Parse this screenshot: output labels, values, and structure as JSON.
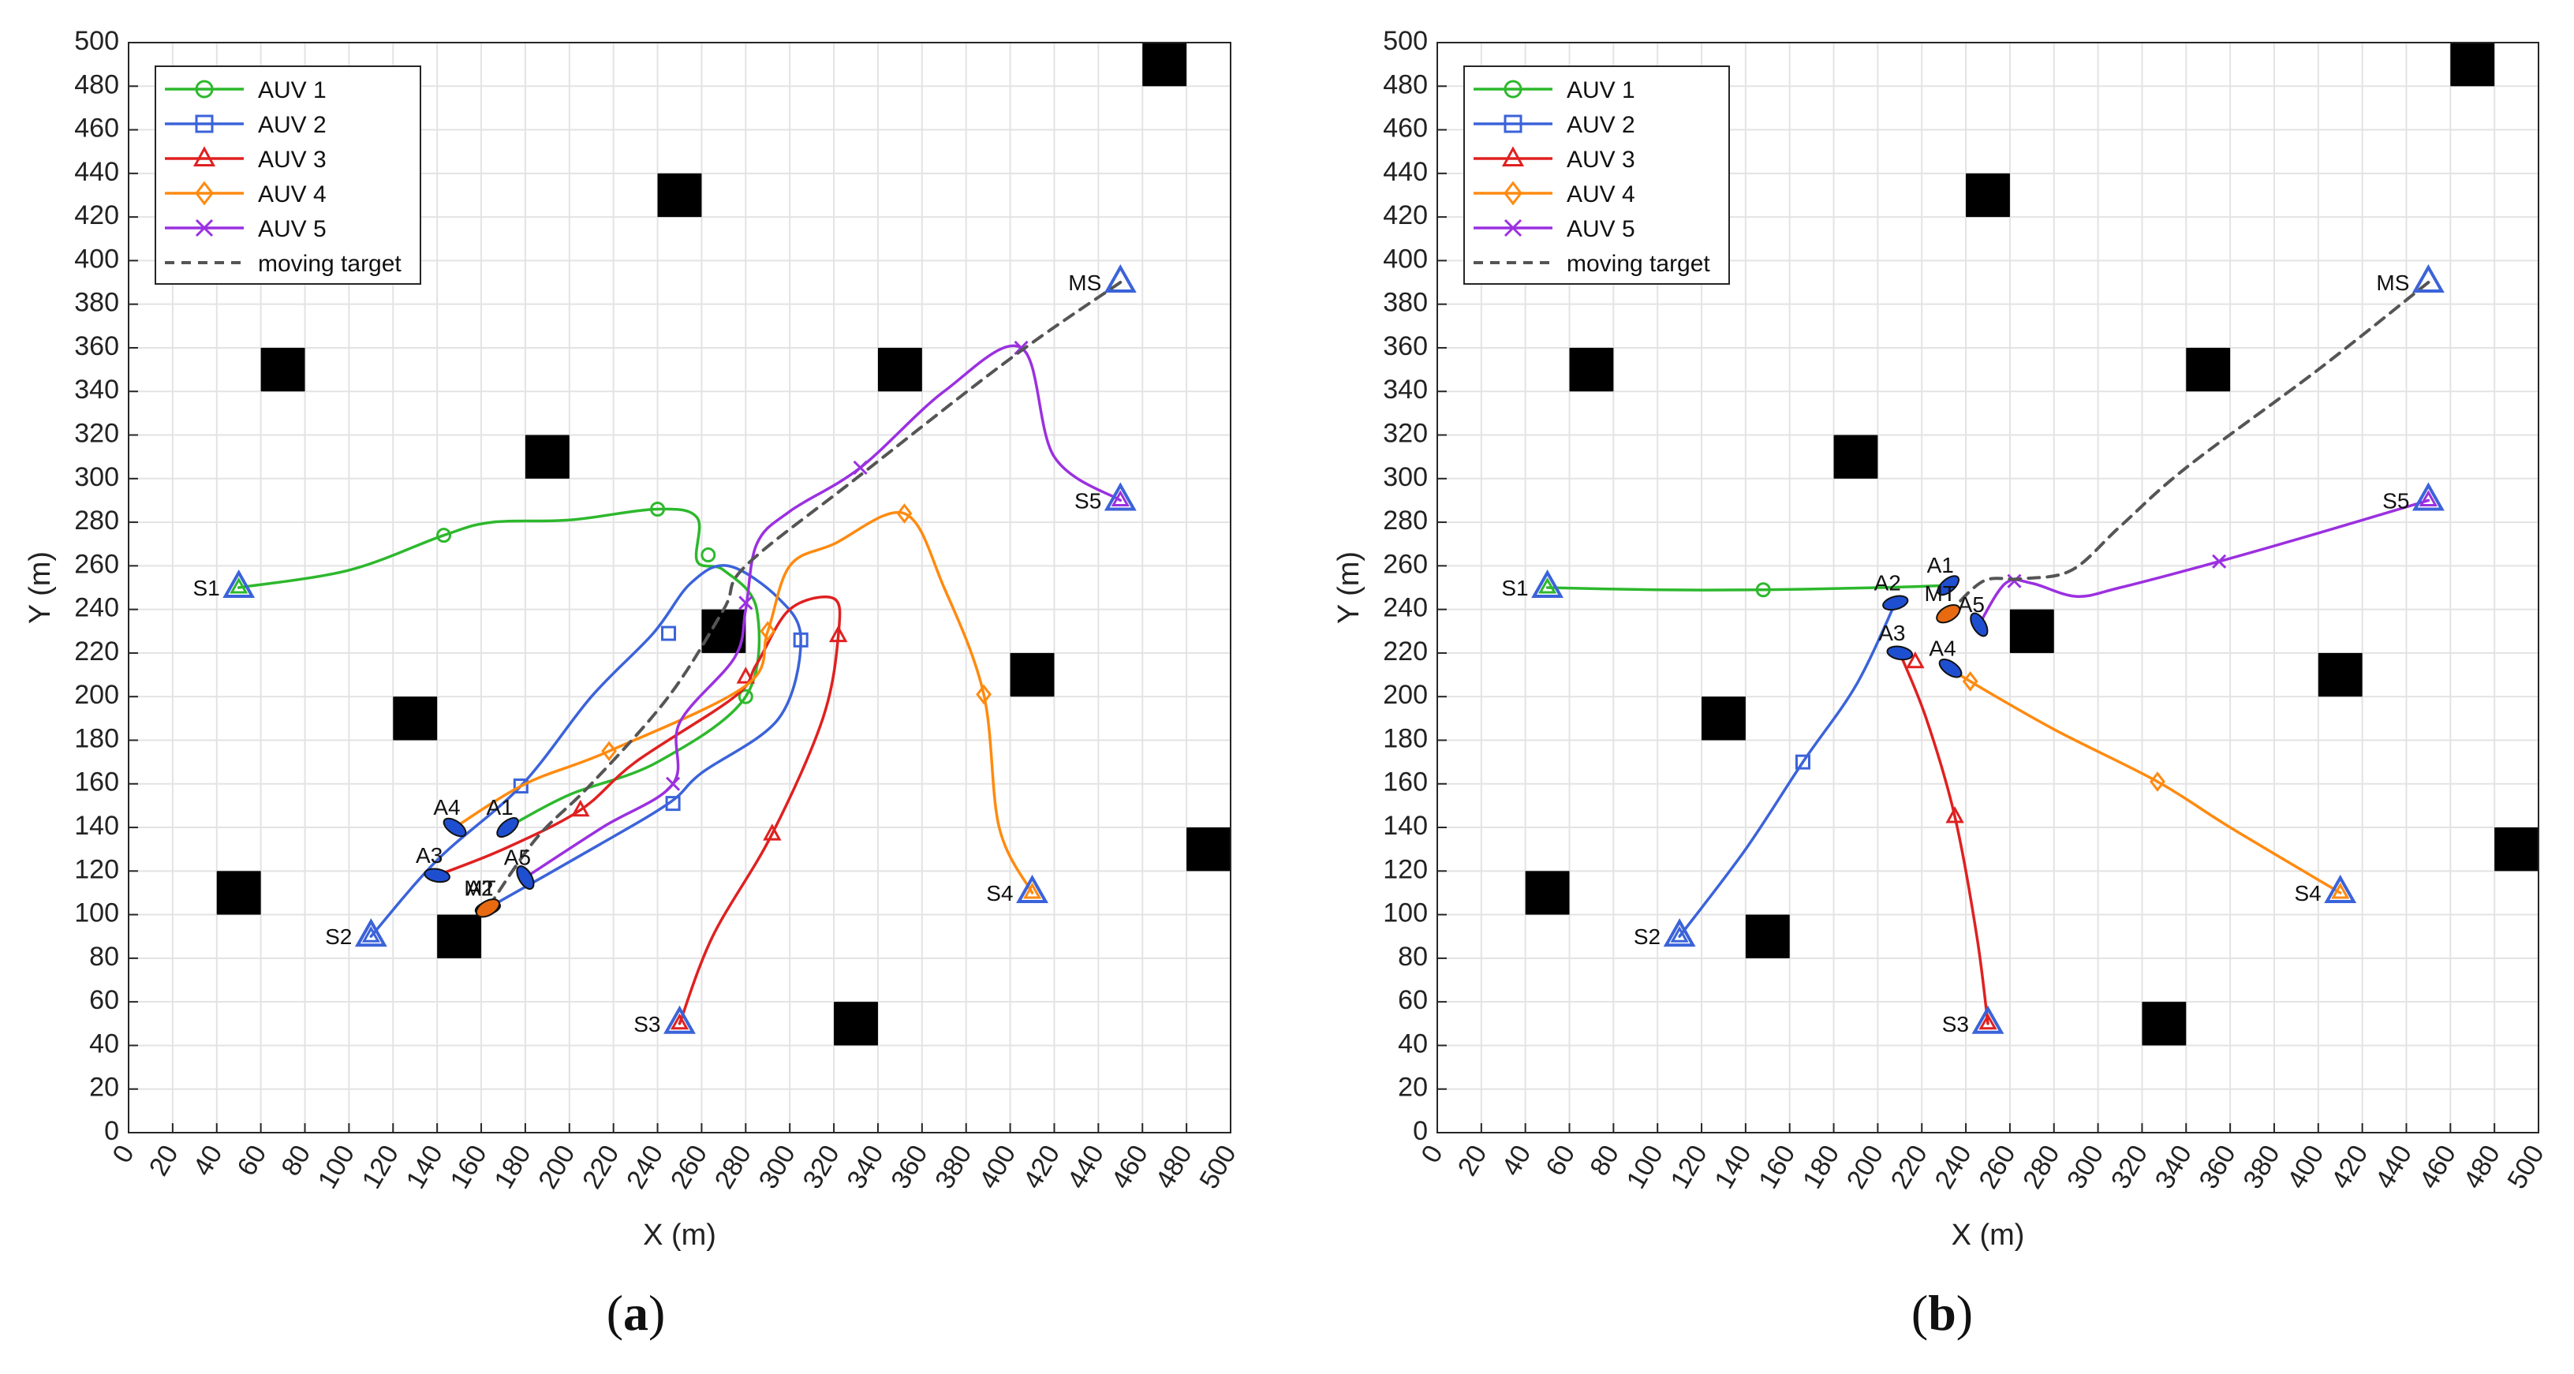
{
  "figure": {
    "panel_labels": [
      {
        "open": "(",
        "letter": "a",
        "close": ")"
      },
      {
        "open": "(",
        "letter": "b",
        "close": ")"
      }
    ]
  },
  "colors": {
    "AUV 1": "#2db82d",
    "AUV 2": "#3b63d9",
    "AUV 3": "#e02020",
    "AUV 4": "#ff8a10",
    "AUV 5": "#9b30e0",
    "moving target": "#555555",
    "obstacle": "#000000"
  },
  "chart_data": [
    {
      "type": "line",
      "panel": "a",
      "xlabel": "X (m)",
      "ylabel": "Y (m)",
      "xlim": [
        0,
        500
      ],
      "ylim": [
        0,
        500
      ],
      "xticks": [
        0,
        20,
        40,
        60,
        80,
        100,
        120,
        140,
        160,
        180,
        200,
        220,
        240,
        260,
        280,
        300,
        320,
        340,
        360,
        380,
        400,
        420,
        440,
        460,
        480,
        500
      ],
      "yticks": [
        0,
        20,
        40,
        60,
        80,
        100,
        120,
        140,
        160,
        180,
        200,
        220,
        240,
        260,
        280,
        300,
        320,
        340,
        360,
        380,
        400,
        420,
        440,
        460,
        480,
        500
      ],
      "grid": true,
      "legend": {
        "location": "top-left",
        "entries": [
          "AUV 1",
          "AUV 2",
          "AUV 3",
          "AUV 4",
          "AUV 5",
          "moving target"
        ]
      },
      "obstacles": [
        [
          470,
          490
        ],
        [
          250,
          430
        ],
        [
          70,
          350
        ],
        [
          350,
          350
        ],
        [
          190,
          310
        ],
        [
          270,
          230
        ],
        [
          410,
          210
        ],
        [
          130,
          190
        ],
        [
          490,
          130
        ],
        [
          50,
          110
        ],
        [
          150,
          90
        ],
        [
          330,
          50
        ]
      ],
      "start_labels": [
        {
          "text": "S1",
          "x": 50,
          "y": 250,
          "series": "AUV 1"
        },
        {
          "text": "S2",
          "x": 110,
          "y": 90,
          "series": "AUV 2"
        },
        {
          "text": "S3",
          "x": 250,
          "y": 50,
          "series": "AUV 3"
        },
        {
          "text": "S4",
          "x": 410,
          "y": 110,
          "series": "AUV 4"
        },
        {
          "text": "S5",
          "x": 450,
          "y": 290,
          "series": "AUV 5"
        },
        {
          "text": "MS",
          "x": 450,
          "y": 390,
          "series": "moving target"
        }
      ],
      "end_labels": [
        {
          "text": "A1",
          "x": 172,
          "y": 140
        },
        {
          "text": "A2",
          "x": 163,
          "y": 103
        },
        {
          "text": "A3",
          "x": 140,
          "y": 118
        },
        {
          "text": "A4",
          "x": 148,
          "y": 140
        },
        {
          "text": "A5",
          "x": 180,
          "y": 117
        },
        {
          "text": "MT",
          "x": 163,
          "y": 103
        }
      ],
      "series": [
        {
          "name": "AUV 1",
          "marker": "circle",
          "points": [
            [
              50,
              250
            ],
            [
              100,
              258
            ],
            [
              143,
              274
            ],
            [
              165,
              280
            ],
            [
              200,
              281
            ],
            [
              240,
              286
            ],
            [
              258,
              282
            ],
            [
              258,
              262
            ],
            [
              270,
              258
            ],
            [
              285,
              240
            ],
            [
              280,
              200
            ],
            [
              240,
              170
            ],
            [
              200,
              155
            ],
            [
              172,
              140
            ]
          ],
          "markers": [
            [
              143,
              274
            ],
            [
              240,
              286
            ],
            [
              263,
              265
            ],
            [
              280,
              200
            ]
          ]
        },
        {
          "name": "AUV 2",
          "marker": "square",
          "points": [
            [
              110,
              90
            ],
            [
              140,
              125
            ],
            [
              178,
              159
            ],
            [
              210,
              200
            ],
            [
              238,
              229
            ],
            [
              255,
              252
            ],
            [
              272,
              260
            ],
            [
              295,
              245
            ],
            [
              305,
              226
            ],
            [
              295,
              190
            ],
            [
              260,
              165
            ],
            [
              245,
              151
            ],
            [
              210,
              130
            ],
            [
              163,
              103
            ]
          ],
          "markers": [
            [
              178,
              159
            ],
            [
              245,
              229
            ],
            [
              305,
              226
            ],
            [
              247,
              151
            ]
          ]
        },
        {
          "name": "AUV 3",
          "marker": "triangle",
          "points": [
            [
              250,
              50
            ],
            [
              265,
              90
            ],
            [
              292,
              137
            ],
            [
              315,
              190
            ],
            [
              322,
              228
            ],
            [
              320,
              245
            ],
            [
              300,
              240
            ],
            [
              285,
              215
            ],
            [
              275,
              200
            ],
            [
              230,
              170
            ],
            [
              205,
              148
            ],
            [
              170,
              130
            ],
            [
              140,
              118
            ]
          ],
          "markers": [
            [
              292,
              137
            ],
            [
              322,
              228
            ],
            [
              280,
              209
            ],
            [
              205,
              148
            ]
          ]
        },
        {
          "name": "AUV 4",
          "marker": "diamond",
          "points": [
            [
              410,
              110
            ],
            [
              395,
              140
            ],
            [
              388,
              201
            ],
            [
              370,
              250
            ],
            [
              352,
              284
            ],
            [
              320,
              270
            ],
            [
              300,
              260
            ],
            [
              290,
              230
            ],
            [
              280,
              205
            ],
            [
              218,
              175
            ],
            [
              180,
              160
            ],
            [
              148,
              140
            ]
          ],
          "markers": [
            [
              388,
              201
            ],
            [
              352,
              284
            ],
            [
              290,
              230
            ],
            [
              218,
              175
            ]
          ]
        },
        {
          "name": "AUV 5",
          "marker": "x",
          "points": [
            [
              450,
              290
            ],
            [
              420,
              310
            ],
            [
              405,
              360
            ],
            [
              370,
              340
            ],
            [
              332,
              305
            ],
            [
              300,
              285
            ],
            [
              285,
              270
            ],
            [
              280,
              240
            ],
            [
              275,
              218
            ],
            [
              250,
              188
            ],
            [
              247,
              160
            ],
            [
              215,
              140
            ],
            [
              180,
              117
            ]
          ],
          "markers": [
            [
              405,
              360
            ],
            [
              332,
              305
            ],
            [
              280,
              243
            ],
            [
              247,
              160
            ]
          ]
        },
        {
          "name": "moving target",
          "marker": "none",
          "dashed": true,
          "points": [
            [
              450,
              390
            ],
            [
              400,
              355
            ],
            [
              330,
              300
            ],
            [
              280,
              260
            ],
            [
              270,
              240
            ],
            [
              245,
              200
            ],
            [
              210,
              160
            ],
            [
              185,
              135
            ],
            [
              163,
              103
            ]
          ],
          "markers": []
        }
      ]
    },
    {
      "type": "line",
      "panel": "b",
      "xlabel": "X (m)",
      "ylabel": "Y (m)",
      "xlim": [
        0,
        500
      ],
      "ylim": [
        0,
        500
      ],
      "xticks": [
        0,
        20,
        40,
        60,
        80,
        100,
        120,
        140,
        160,
        180,
        200,
        220,
        240,
        260,
        280,
        300,
        320,
        340,
        360,
        380,
        400,
        420,
        440,
        460,
        480,
        500
      ],
      "yticks": [
        0,
        20,
        40,
        60,
        80,
        100,
        120,
        140,
        160,
        180,
        200,
        220,
        240,
        260,
        280,
        300,
        320,
        340,
        360,
        380,
        400,
        420,
        440,
        460,
        480,
        500
      ],
      "grid": true,
      "legend": {
        "location": "top-left",
        "entries": [
          "AUV 1",
          "AUV 2",
          "AUV 3",
          "AUV 4",
          "AUV 5",
          "moving target"
        ]
      },
      "obstacles": [
        [
          470,
          490
        ],
        [
          250,
          430
        ],
        [
          70,
          350
        ],
        [
          350,
          350
        ],
        [
          190,
          310
        ],
        [
          270,
          230
        ],
        [
          410,
          210
        ],
        [
          130,
          190
        ],
        [
          490,
          130
        ],
        [
          50,
          110
        ],
        [
          150,
          90
        ],
        [
          330,
          50
        ]
      ],
      "start_labels": [
        {
          "text": "S1",
          "x": 50,
          "y": 250,
          "series": "AUV 1"
        },
        {
          "text": "S2",
          "x": 110,
          "y": 90,
          "series": "AUV 2"
        },
        {
          "text": "S3",
          "x": 250,
          "y": 50,
          "series": "AUV 3"
        },
        {
          "text": "S4",
          "x": 410,
          "y": 110,
          "series": "AUV 4"
        },
        {
          "text": "S5",
          "x": 450,
          "y": 290,
          "series": "AUV 5"
        },
        {
          "text": "MS",
          "x": 450,
          "y": 390,
          "series": "moving target"
        }
      ],
      "end_labels": [
        {
          "text": "A1",
          "x": 232,
          "y": 251
        },
        {
          "text": "A2",
          "x": 208,
          "y": 243
        },
        {
          "text": "A3",
          "x": 210,
          "y": 220
        },
        {
          "text": "A4",
          "x": 233,
          "y": 213
        },
        {
          "text": "A5",
          "x": 246,
          "y": 233
        },
        {
          "text": "MT",
          "x": 232,
          "y": 238
        }
      ],
      "series": [
        {
          "name": "AUV 1",
          "marker": "circle",
          "points": [
            [
              50,
              250
            ],
            [
              100,
              249
            ],
            [
              148,
              249
            ],
            [
              200,
              250
            ],
            [
              232,
              251
            ]
          ],
          "markers": [
            [
              148,
              249
            ]
          ]
        },
        {
          "name": "AUV 2",
          "marker": "square",
          "points": [
            [
              110,
              90
            ],
            [
              140,
              130
            ],
            [
              166,
              170
            ],
            [
              190,
              205
            ],
            [
              208,
              243
            ]
          ],
          "markers": [
            [
              166,
              170
            ]
          ]
        },
        {
          "name": "AUV 3",
          "marker": "triangle",
          "points": [
            [
              250,
              50
            ],
            [
              245,
              90
            ],
            [
              235,
              145
            ],
            [
              222,
              190
            ],
            [
              210,
              220
            ]
          ],
          "markers": [
            [
              235,
              145
            ],
            [
              217,
              216
            ]
          ]
        },
        {
          "name": "AUV 4",
          "marker": "diamond",
          "points": [
            [
              410,
              110
            ],
            [
              360,
              140
            ],
            [
              327,
              161
            ],
            [
              280,
              185
            ],
            [
              242,
              207
            ],
            [
              233,
              213
            ]
          ],
          "markers": [
            [
              327,
              161
            ],
            [
              242,
              207
            ]
          ]
        },
        {
          "name": "AUV 5",
          "marker": "x",
          "points": [
            [
              450,
              290
            ],
            [
              400,
              275
            ],
            [
              355,
              262
            ],
            [
              310,
              250
            ],
            [
              290,
              246
            ],
            [
              270,
              252
            ],
            [
              258,
              252
            ],
            [
              246,
              233
            ]
          ],
          "markers": [
            [
              355,
              262
            ],
            [
              262,
              253
            ]
          ]
        },
        {
          "name": "moving target",
          "marker": "none",
          "dashed": true,
          "points": [
            [
              450,
              390
            ],
            [
              400,
              350
            ],
            [
              340,
              305
            ],
            [
              310,
              278
            ],
            [
              288,
              258
            ],
            [
              265,
              254
            ],
            [
              248,
              253
            ],
            [
              232,
              238
            ]
          ],
          "markers": []
        }
      ]
    }
  ]
}
